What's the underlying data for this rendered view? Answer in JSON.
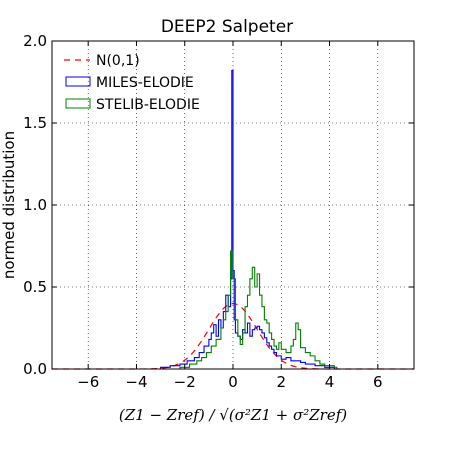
{
  "chart_data": {
    "type": "line",
    "title": "DEEP2 Salpeter",
    "xlabel": "(Z1 − Zref) / √(σ²Z1 + σ²Zref)",
    "ylabel": "normed distribution",
    "xlim": [
      -7.5,
      7.5
    ],
    "ylim": [
      0.0,
      2.0
    ],
    "xticks": [
      -6,
      -4,
      -2,
      0,
      2,
      4,
      6
    ],
    "xtick_labels": [
      "−6",
      "−4",
      "−2",
      "0",
      "2",
      "4",
      "6"
    ],
    "yticks": [
      0.0,
      0.5,
      1.0,
      1.5,
      2.0
    ],
    "ytick_labels": [
      "0.0",
      "0.5",
      "1.0",
      "1.5",
      "2.0"
    ],
    "grid": true,
    "legend_position": "top-left",
    "series": [
      {
        "name": "N(0,1)",
        "kind": "gaussian",
        "mu": 0,
        "sigma": 1,
        "color": "#ff0000",
        "style": "dashed"
      },
      {
        "name": "MILES-ELODIE",
        "kind": "step",
        "color": "#0000ff",
        "x": [
          -3.0,
          -2.6,
          -2.2,
          -1.9,
          -1.6,
          -1.4,
          -1.2,
          -1.0,
          -0.9,
          -0.8,
          -0.7,
          -0.6,
          -0.5,
          -0.4,
          -0.3,
          -0.2,
          -0.1,
          -0.05,
          0.0,
          0.05,
          0.1,
          0.2,
          0.3,
          0.4,
          0.5,
          0.6,
          0.7,
          0.8,
          0.9,
          1.0,
          1.1,
          1.2,
          1.3,
          1.4,
          1.5,
          1.6,
          1.7,
          1.8,
          1.9,
          2.0,
          2.2,
          2.4,
          2.6,
          2.8,
          3.0,
          3.4,
          3.8,
          4.2
        ],
        "y": [
          0.01,
          0.02,
          0.03,
          0.05,
          0.07,
          0.1,
          0.14,
          0.18,
          0.22,
          0.27,
          0.2,
          0.3,
          0.25,
          0.35,
          0.45,
          0.38,
          0.55,
          1.82,
          0.6,
          0.3,
          0.22,
          0.2,
          0.18,
          0.24,
          0.22,
          0.28,
          0.2,
          0.24,
          0.25,
          0.26,
          0.24,
          0.22,
          0.19,
          0.16,
          0.14,
          0.12,
          0.1,
          0.08,
          0.08,
          0.06,
          0.07,
          0.05,
          0.05,
          0.04,
          0.03,
          0.02,
          0.01,
          0.0
        ]
      },
      {
        "name": "STELIB-ELODIE",
        "kind": "step",
        "color": "#008000",
        "x": [
          -2.2,
          -1.8,
          -1.5,
          -1.3,
          -1.1,
          -0.9,
          -0.7,
          -0.5,
          -0.4,
          -0.3,
          -0.2,
          -0.1,
          0.0,
          0.1,
          0.2,
          0.3,
          0.4,
          0.5,
          0.6,
          0.7,
          0.8,
          0.9,
          1.0,
          1.1,
          1.2,
          1.3,
          1.4,
          1.5,
          1.6,
          1.7,
          1.8,
          1.9,
          2.0,
          2.2,
          2.4,
          2.5,
          2.6,
          2.7,
          2.8,
          3.0,
          3.2,
          3.4,
          3.6,
          3.8,
          4.2
        ],
        "y": [
          0.01,
          0.03,
          0.05,
          0.07,
          0.1,
          0.14,
          0.18,
          0.25,
          0.3,
          0.35,
          0.45,
          0.72,
          0.55,
          0.3,
          0.2,
          0.15,
          0.22,
          0.38,
          0.45,
          0.55,
          0.62,
          0.5,
          0.58,
          0.45,
          0.38,
          0.3,
          0.28,
          0.22,
          0.18,
          0.14,
          0.12,
          0.16,
          0.12,
          0.1,
          0.14,
          0.18,
          0.28,
          0.24,
          0.13,
          0.1,
          0.08,
          0.05,
          0.03,
          0.02,
          0.01
        ]
      }
    ]
  }
}
